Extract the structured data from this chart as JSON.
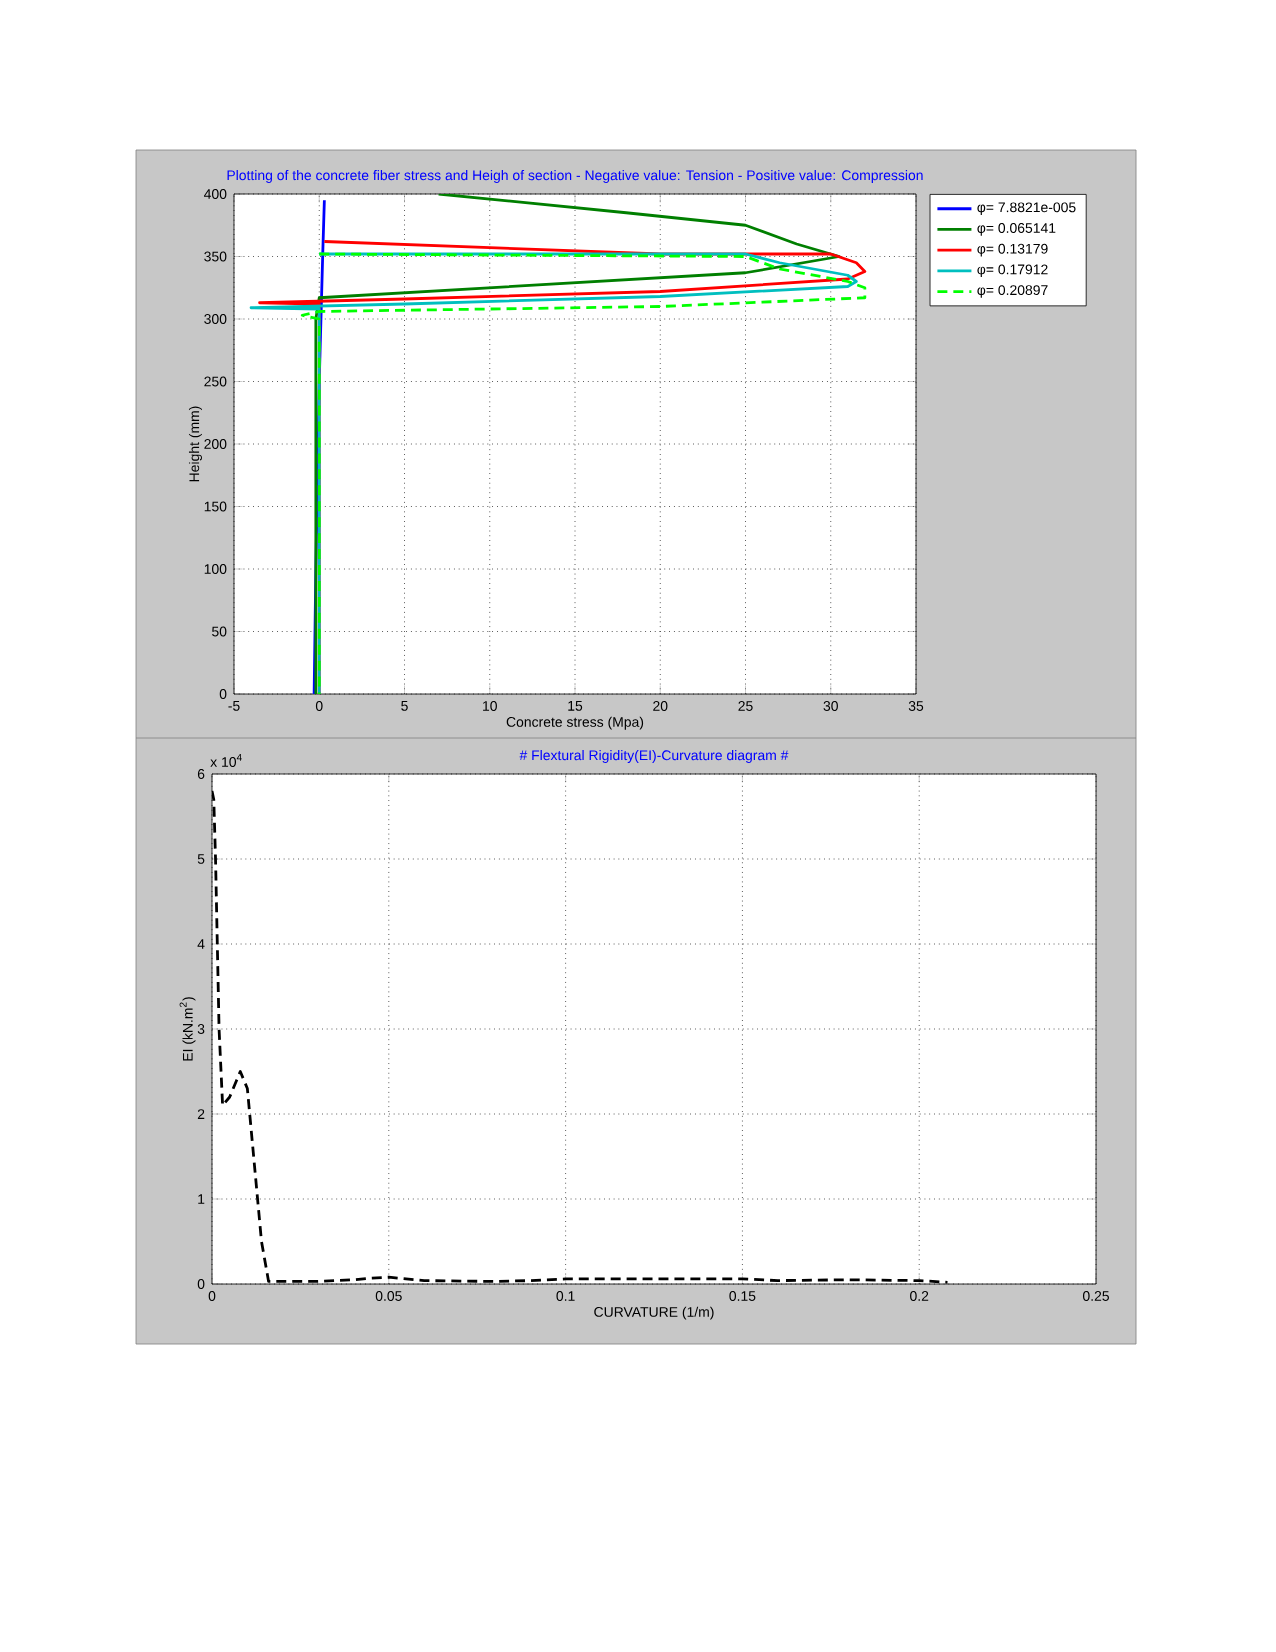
{
  "chart_data": [
    {
      "type": "line",
      "title": "Plotting of the concrete fiber stress and Heigh of section - Negative value: Tension - Positive value: Compression",
      "xlabel": "Concrete stress (Mpa)",
      "ylabel": "Height  (mm)",
      "xlim": [
        -5,
        35
      ],
      "ylim": [
        0,
        400
      ],
      "xticks": [
        -5,
        0,
        5,
        10,
        15,
        20,
        25,
        30,
        35
      ],
      "yticks": [
        0,
        50,
        100,
        150,
        200,
        250,
        300,
        350,
        400
      ],
      "grid": true,
      "legend": "top right",
      "series": [
        {
          "name": "φ= 7.8821e-005",
          "color": "#0000ff",
          "x": [
            -0.3,
            -0.2,
            0,
            0.2,
            0.3
          ],
          "values": [
            0,
            100,
            250,
            350,
            395
          ]
        },
        {
          "name": "φ= 0.065141",
          "color": "#007f00",
          "x": [
            7,
            18,
            25,
            28,
            30.5,
            25,
            10,
            0,
            -0.2,
            -0.2
          ],
          "values": [
            400,
            385,
            375,
            360,
            350,
            337,
            325,
            317,
            300,
            0
          ]
        },
        {
          "name": "φ= 0.13179",
          "color": "#ff0000",
          "x": [
            0.3,
            20,
            30,
            31.5,
            32,
            31,
            20,
            5,
            -3.5,
            0,
            0
          ],
          "values": [
            362,
            352,
            352,
            345,
            338,
            332,
            322,
            316,
            313,
            312,
            0
          ]
        },
        {
          "name": "φ= 0.17912",
          "color": "#00bfbf",
          "x": [
            0,
            25,
            27,
            31,
            31.5,
            31,
            20,
            5,
            -4,
            0,
            0
          ],
          "values": [
            352,
            352,
            345,
            335,
            330,
            326,
            318,
            312,
            309,
            308,
            0
          ]
        },
        {
          "name": "φ= 0.20897",
          "color": "#00ff00",
          "line_style": "dashed",
          "x": [
            0,
            25,
            27,
            31,
            32,
            32,
            20,
            5,
            0,
            -1,
            0,
            0
          ],
          "values": [
            352,
            350,
            340,
            330,
            325,
            317,
            310,
            307,
            306,
            303,
            300,
            0
          ]
        }
      ]
    },
    {
      "type": "line",
      "title": "# Flextural Rigidity(EI)-Curvature diagram #",
      "xlabel": "CURVATURE (1/m)",
      "ylabel": "EI (kN.m$^{2}$)",
      "annotations": [
        "x 10$^{4}$"
      ],
      "xlim": [
        0,
        0.25
      ],
      "ylim": [
        0,
        6
      ],
      "xticks": [
        0,
        0.05,
        0.1,
        0.15,
        0.2,
        0.25
      ],
      "yticks": [
        0,
        1,
        2,
        3,
        4,
        5,
        6
      ],
      "grid": true,
      "series": [
        {
          "color": "#000000",
          "line_style": "dashed",
          "x": [
            0,
            0.0005,
            0.001,
            0.002,
            0.003,
            0.005,
            0.007,
            0.008,
            0.01,
            0.012,
            0.014,
            0.016,
            0.03,
            0.04,
            0.045,
            0.05,
            0.06,
            0.08,
            0.09,
            0.1,
            0.15,
            0.16,
            0.18,
            0.2,
            0.208
          ],
          "values": [
            5.8,
            5.7,
            5.0,
            3.0,
            2.1,
            2.2,
            2.4,
            2.5,
            2.3,
            1.4,
            0.5,
            0.03,
            0.03,
            0.05,
            0.07,
            0.08,
            0.04,
            0.03,
            0.04,
            0.06,
            0.06,
            0.04,
            0.05,
            0.04,
            0.02
          ]
        }
      ]
    }
  ]
}
